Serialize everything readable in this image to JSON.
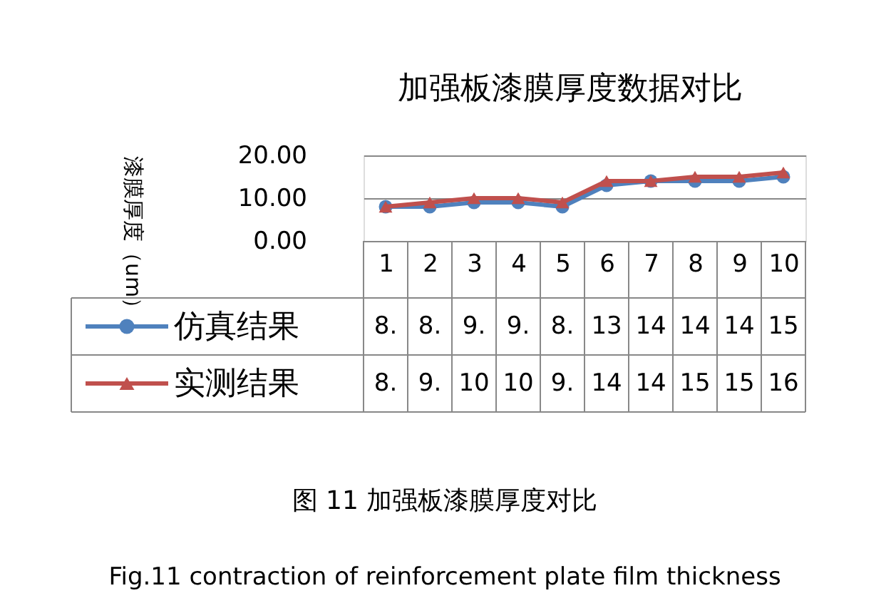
{
  "chart_data": {
    "type": "line",
    "title": "加强板漆膜厚度数据对比",
    "ylabel": "漆膜厚度（um）",
    "categories": [
      "1",
      "2",
      "3",
      "4",
      "5",
      "6",
      "7",
      "8",
      "9",
      "10"
    ],
    "series": [
      {
        "name": "仿真结果",
        "color": "#4f81bd",
        "marker": "circle",
        "values": [
          8,
          8,
          9,
          9,
          8,
          13,
          14,
          14,
          14,
          15
        ],
        "value_labels": [
          "8.",
          "8.",
          "9.",
          "9.",
          "8.",
          "13",
          "14",
          "14",
          "14",
          "15"
        ]
      },
      {
        "name": "实测结果",
        "color": "#c0504d",
        "marker": "triangle",
        "values": [
          8,
          9,
          10,
          10,
          9,
          14,
          14,
          15,
          15,
          16
        ],
        "value_labels": [
          "8.",
          "9.",
          "10",
          "10",
          "9.",
          "14",
          "14",
          "15",
          "15",
          "16"
        ]
      }
    ],
    "ylim": [
      0,
      20
    ],
    "yticks": [
      {
        "value": 0,
        "label": "0.00"
      },
      {
        "value": 10,
        "label": "10.00"
      },
      {
        "value": 20,
        "label": "20.00"
      }
    ],
    "grid": "y",
    "legend": "bottom",
    "line_style": "solid",
    "annotations": [
      "图 11 加强板漆膜厚度对比",
      "Fig.11 contraction of reinforcement plate film thickness"
    ]
  }
}
